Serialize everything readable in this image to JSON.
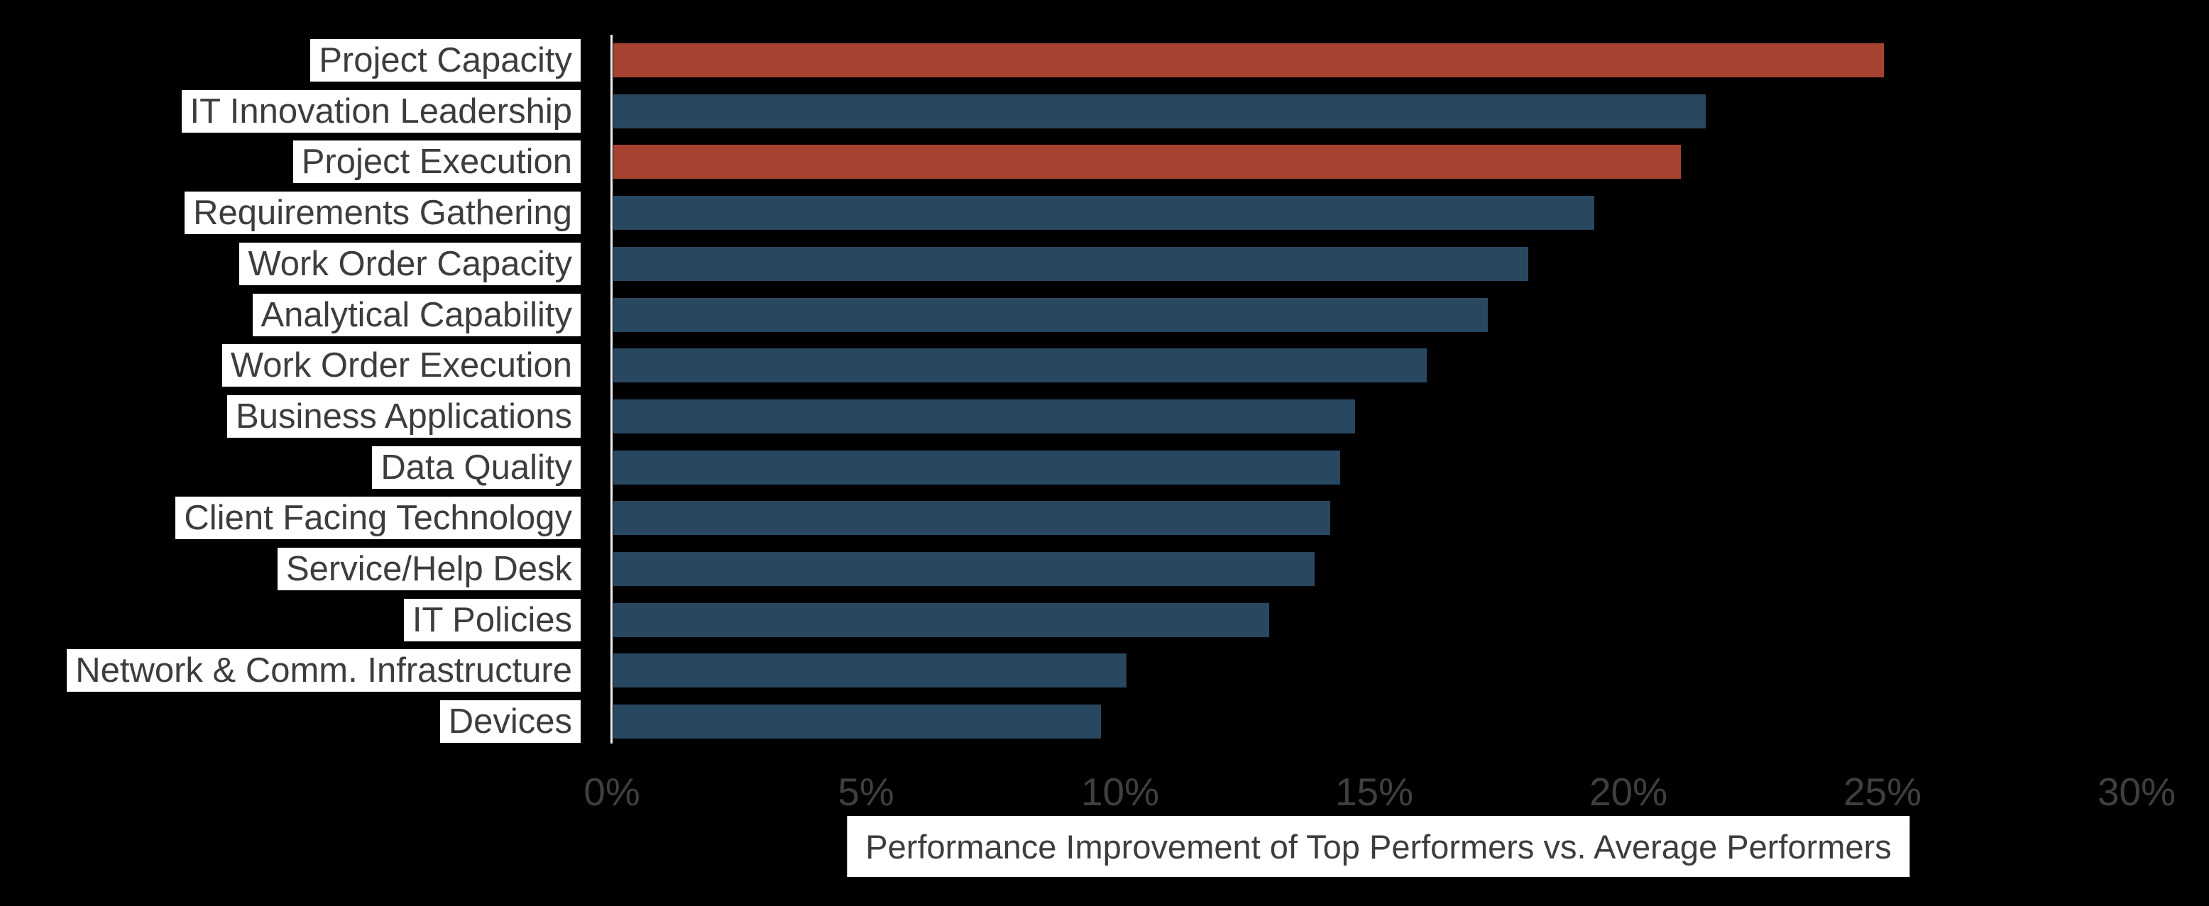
{
  "chart_data": {
    "type": "bar",
    "orientation": "horizontal",
    "title": "",
    "xlabel": "Performance Improvement of Top Performers vs. Average Performers",
    "ylabel": "",
    "unit": "%",
    "categories": [
      "Project Capacity",
      "IT Innovation Leadership",
      "Project Execution",
      "Requirements Gathering",
      "Work Order Capacity",
      "Analytical Capability",
      "Work Order Execution",
      "Business Applications",
      "Data Quality",
      "Client Facing Technology",
      "Service/Help Desk",
      "IT Policies",
      "Network & Comm. Infrastructure",
      "Devices"
    ],
    "values": [
      25.0,
      21.5,
      21.0,
      19.3,
      18.0,
      17.2,
      16.0,
      14.6,
      14.3,
      14.1,
      13.8,
      12.9,
      10.1,
      9.6
    ],
    "highlight_indices": [
      0,
      2
    ],
    "x_tick_values": [
      0,
      5,
      10,
      15,
      20,
      25,
      30
    ],
    "x_tick_labels": [
      "0%",
      "5%",
      "10%",
      "15%",
      "20%",
      "25%",
      "30%"
    ],
    "xlim": [
      0,
      30
    ],
    "grid": false,
    "legend": null,
    "colors": {
      "background": "#000000",
      "bar_primary": "#284760",
      "bar_highlight": "#a64330",
      "axis_line": "#ededed",
      "tick_text": "#3f3f3f",
      "label_text": "#3d3d3d",
      "label_bg": "#ffffff"
    }
  }
}
